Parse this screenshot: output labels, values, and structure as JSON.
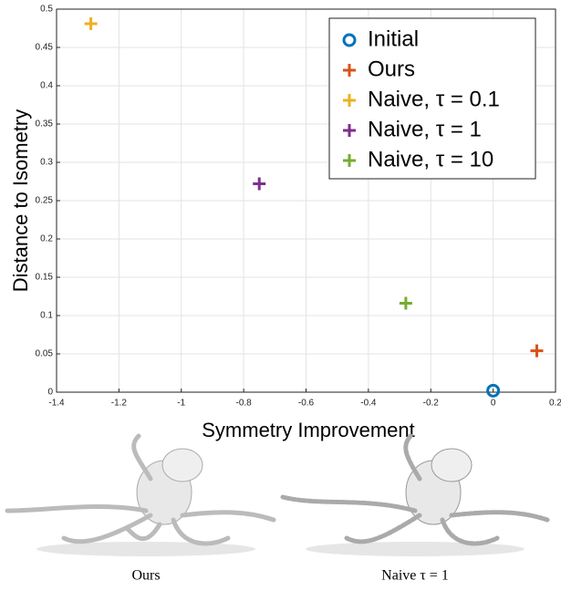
{
  "chart_data": {
    "type": "scatter",
    "x_label": "Symmetry Improvement",
    "y_label": "Distance to Isometry",
    "xlim": [
      -1.4,
      0.2
    ],
    "xticks": [
      -1.4,
      -1.2,
      -1,
      -0.8,
      -0.6,
      -0.4,
      -0.2,
      0,
      0.2
    ],
    "ylim": [
      0,
      0.5
    ],
    "yticks": [
      0,
      0.05,
      0.1,
      0.15,
      0.2,
      0.25,
      0.3,
      0.35,
      0.4,
      0.45,
      0.5
    ],
    "grid": true,
    "legend": "upper right",
    "series": [
      {
        "name": "Initial",
        "color": "#0072bd",
        "marker": "o",
        "x": [
          0
        ],
        "values": [
          0.002
        ]
      },
      {
        "name": "Ours",
        "color": "#d95319",
        "marker": "+",
        "x": [
          0.14
        ],
        "values": [
          0.054
        ]
      },
      {
        "name": "Naive, τ = 0.1",
        "color": "#edb120",
        "marker": "+",
        "x": [
          -1.29
        ],
        "values": [
          0.481
        ]
      },
      {
        "name": "Naive, τ = 1",
        "color": "#7e2f8e",
        "marker": "+",
        "x": [
          -0.75
        ],
        "values": [
          0.272
        ]
      },
      {
        "name": "Naive, τ = 10",
        "color": "#77ac30",
        "marker": "+",
        "x": [
          -0.28
        ],
        "values": [
          0.116
        ]
      }
    ]
  },
  "images": [
    {
      "caption": "Ours"
    },
    {
      "caption": "Naive τ = 1"
    }
  ]
}
